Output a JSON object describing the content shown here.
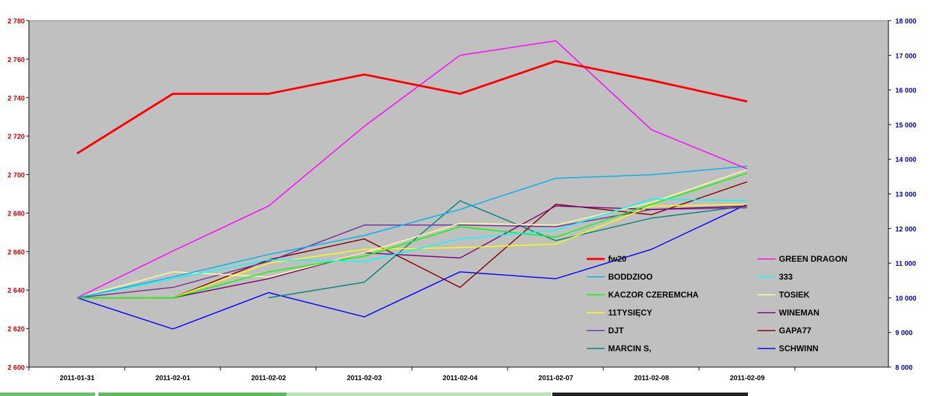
{
  "chart_data": {
    "type": "line",
    "categories": [
      "2011-01-31",
      "2011-02-01",
      "2011-02-02",
      "2011-02-03",
      "2011-02-04",
      "2011-02-07",
      "2011-02-08",
      "2011-02-09"
    ],
    "y_left": {
      "ylim": [
        2600,
        2780
      ],
      "ticks": [
        2600,
        2620,
        2640,
        2660,
        2680,
        2700,
        2720,
        2740,
        2760,
        2780
      ],
      "labels": [
        "2 600",
        "2 620",
        "2 640",
        "2 660",
        "2 680",
        "2 700",
        "2 720",
        "2 740",
        "2 760",
        "2 780"
      ],
      "color": "#e00000"
    },
    "y_right": {
      "ylim": [
        8000,
        18000
      ],
      "ticks": [
        8000,
        9000,
        10000,
        11000,
        12000,
        13000,
        14000,
        15000,
        16000,
        17000,
        18000
      ],
      "labels": [
        "8 000",
        "9 000",
        "10 000",
        "11 000",
        "12 000",
        "13 000",
        "14 000",
        "15 000",
        "16 000",
        "17 000",
        "18 000"
      ],
      "color": "#0000cc"
    },
    "plot_background": "#c0c0c0",
    "grid": false,
    "legend_position": "inside-bottom-right",
    "series": [
      {
        "name": "fw20",
        "axis": "left",
        "color": "#ff0000",
        "width": 3,
        "values": [
          2711,
          2742,
          2742,
          2752,
          2742,
          2759,
          2749,
          2738
        ]
      },
      {
        "name": "GREEN DRAGON",
        "axis": "right",
        "color": "#ff00ff",
        "width": 1.5,
        "values": [
          10000,
          11350,
          12650,
          14950,
          17000,
          17420,
          14850,
          13720
        ]
      },
      {
        "name": "BODDZIOO",
        "axis": "right",
        "color": "#00b0f0",
        "width": 1.5,
        "values": [
          10000,
          10600,
          11250,
          11800,
          12550,
          13450,
          13550,
          13800
        ]
      },
      {
        "name": "333",
        "axis": "right",
        "color": "#00ffff",
        "width": 1.5,
        "values": [
          10000,
          10550,
          11100,
          11050,
          11700,
          11950,
          12850,
          12800
        ]
      },
      {
        "name": "KACZOR CZEREMCHA",
        "axis": "right",
        "color": "#00ff00",
        "width": 1.5,
        "values": [
          10000,
          10000,
          10750,
          11200,
          12050,
          11750,
          12700,
          13600
        ]
      },
      {
        "name": "TOSIEK",
        "axis": "right",
        "color": "#ffff99",
        "width": 1.5,
        "values": [
          10000,
          10750,
          10600,
          11300,
          12150,
          12100,
          12750,
          13700
        ]
      },
      {
        "name": "11TYSIĘCY",
        "axis": "right",
        "color": "#ffff00",
        "width": 1.5,
        "values": [
          10000,
          10000,
          11000,
          11400,
          11450,
          11550,
          12650,
          12700
        ]
      },
      {
        "name": "WINEMAN",
        "axis": "right",
        "color": "#800080",
        "width": 1.5,
        "values": [
          10000,
          10000,
          10550,
          11300,
          11150,
          12650,
          12550,
          12650
        ]
      },
      {
        "name": "DJT",
        "axis": "right",
        "color": "#7030a0",
        "width": 1.5,
        "values": [
          10000,
          10300,
          11050,
          12100,
          12100,
          12050,
          12550,
          12600
        ]
      },
      {
        "name": "GAPA77",
        "axis": "right",
        "color": "#800000",
        "width": 1.5,
        "values": [
          10000,
          10000,
          11100,
          11700,
          10300,
          12700,
          12400,
          13350
        ]
      },
      {
        "name": "MARCIN S,",
        "axis": "right",
        "color": "#008080",
        "width": 1.5,
        "values": [
          null,
          null,
          10000,
          10450,
          12800,
          11650,
          12300,
          12650
        ]
      },
      {
        "name": "SCHWINN",
        "axis": "right",
        "color": "#0000ff",
        "width": 1.5,
        "values": [
          10000,
          9100,
          10150,
          9450,
          10750,
          10550,
          11400,
          12700
        ]
      }
    ]
  }
}
